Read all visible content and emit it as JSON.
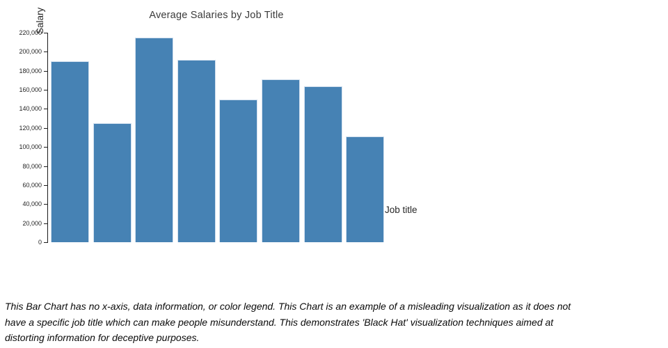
{
  "chart": {
    "title": "Average Salaries by Job Title",
    "y_axis_label": "Salary",
    "x_axis_label": "Job title"
  },
  "chart_data": {
    "type": "bar",
    "title": "Average Salaries by Job Title",
    "xlabel": "Job title",
    "ylabel": "Salary",
    "categories": [
      "",
      "",
      "",
      "",
      "",
      "",
      "",
      ""
    ],
    "values": [
      190000,
      125000,
      215000,
      191500,
      150000,
      171000,
      163500,
      111000
    ],
    "ylim": [
      0,
      220000
    ],
    "ytick_step": 20000,
    "ytick_labels": [
      "0",
      "20,000",
      "40,000",
      "60,000",
      "80,000",
      "100,000",
      "120,000",
      "140,000",
      "160,000",
      "180,000",
      "200,000",
      "220,000"
    ],
    "x_tick_labels_shown": false,
    "legend": false,
    "grid": false,
    "bar_color": "#4682b4",
    "bar_edge_color": "#d2e0ef"
  },
  "caption": {
    "lines": [
      "This Bar Chart has no x-axis, data information, or color legend. This Chart is an example of a misleading visualization as it does not",
      "have a specific job title which can make people misunderstand. This demonstrates 'Black Hat' visualization techniques aimed at",
      "distorting information for deceptive purposes."
    ]
  }
}
